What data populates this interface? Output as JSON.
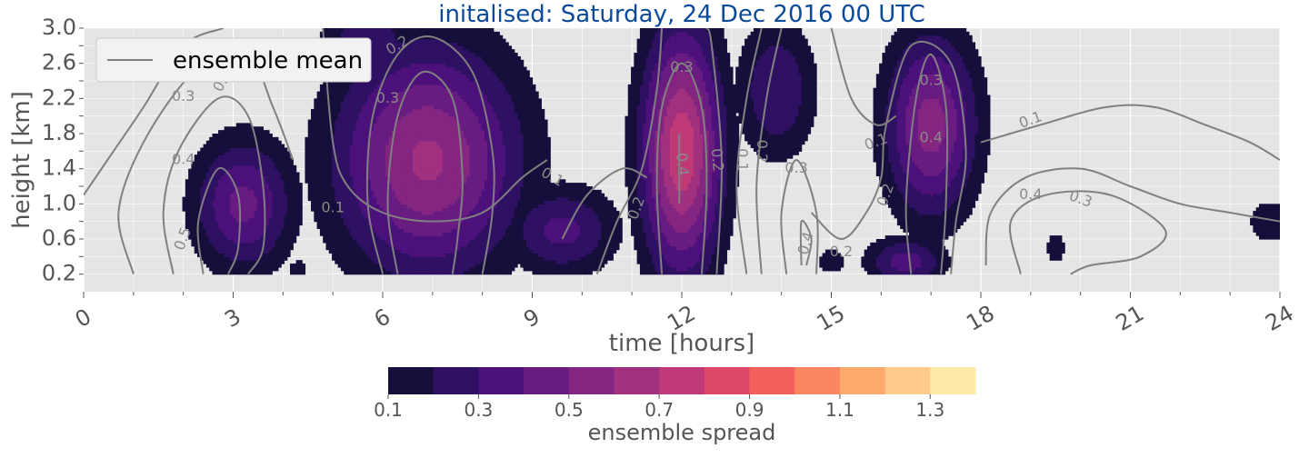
{
  "chart_data": {
    "type": "heatmap",
    "subtype": "filled-contour-with-line-contours",
    "title": "initalised: Saturday, 24 Dec 2016 00 UTC",
    "title_color": "#0b4a9a",
    "xlabel": "time [hours]",
    "ylabel": "height [km]",
    "xlim": [
      0,
      24
    ],
    "ylim": [
      0.0,
      3.0
    ],
    "x_ticks": [
      0,
      3,
      6,
      9,
      12,
      15,
      18,
      21,
      24
    ],
    "x_tick_labels": [
      "0",
      "3",
      "6",
      "9",
      "12",
      "15",
      "18",
      "21",
      "24"
    ],
    "y_ticks": [
      0.2,
      0.6,
      1.0,
      1.4,
      1.8,
      2.2,
      2.6,
      3.0
    ],
    "y_tick_labels": [
      "0.2",
      "0.6",
      "1.0",
      "1.4",
      "1.8",
      "2.2",
      "2.6",
      "3.0"
    ],
    "grid": true,
    "legend": {
      "position": "top-left",
      "entries": [
        {
          "label": "ensemble mean",
          "color": "#808080"
        }
      ]
    },
    "colorbar": {
      "label": "ensemble spread",
      "colormap": "magma",
      "levels": [
        0.1,
        0.2,
        0.3,
        0.4,
        0.5,
        0.6,
        0.7,
        0.8,
        0.9,
        1.0,
        1.1,
        1.2,
        1.3,
        1.4
      ],
      "tick_values": [
        0.1,
        0.3,
        0.5,
        0.7,
        0.9,
        1.1,
        1.3
      ],
      "tick_labels": [
        "0.1",
        "0.3",
        "0.5",
        "0.7",
        "0.9",
        "1.1",
        "1.3"
      ],
      "colors": [
        "#160f3b",
        "#2f1163",
        "#4c117a",
        "#681c81",
        "#842681",
        "#a1307e",
        "#bf3a77",
        "#dc4869",
        "#f1605d",
        "#fb8761",
        "#fda96c",
        "#fecb8b",
        "#fdeaab"
      ]
    },
    "spread_blobs": [
      {
        "cx": 3.2,
        "cy": 1.0,
        "rx": 1.25,
        "ry": 0.95,
        "peak": 0.43
      },
      {
        "cx": 4.3,
        "cy": 0.25,
        "rx": 0.3,
        "ry": 0.2,
        "peak": 0.15
      },
      {
        "cx": 6.9,
        "cy": 1.5,
        "rx": 2.3,
        "ry": 1.65,
        "peak": 0.62
      },
      {
        "cx": 5.7,
        "cy": 2.8,
        "rx": 1.2,
        "ry": 0.55,
        "peak": 0.3
      },
      {
        "cx": 9.6,
        "cy": 0.7,
        "rx": 1.4,
        "ry": 0.65,
        "peak": 0.33
      },
      {
        "cx": 12.0,
        "cy": 1.6,
        "rx": 1.0,
        "ry": 1.75,
        "peak": 0.78
      },
      {
        "cx": 13.9,
        "cy": 2.3,
        "rx": 1.0,
        "ry": 1.0,
        "peak": 0.3
      },
      {
        "cx": 17.0,
        "cy": 1.9,
        "rx": 1.15,
        "ry": 1.3,
        "peak": 0.55
      },
      {
        "cx": 16.5,
        "cy": 0.35,
        "rx": 1.0,
        "ry": 0.35,
        "peak": 0.35
      },
      {
        "cx": 15.0,
        "cy": 0.35,
        "rx": 0.5,
        "ry": 0.25,
        "peak": 0.15
      },
      {
        "cx": 19.5,
        "cy": 0.5,
        "rx": 0.35,
        "ry": 0.3,
        "peak": 0.15
      },
      {
        "cx": 23.8,
        "cy": 0.8,
        "rx": 0.7,
        "ry": 0.4,
        "peak": 0.16
      }
    ],
    "mean_contours": [
      {
        "level": "0.1",
        "points": [
          [
            0.0,
            1.1
          ],
          [
            0.6,
            1.6
          ],
          [
            1.2,
            2.1
          ],
          [
            2.0,
            2.8
          ],
          [
            2.8,
            3.0
          ]
        ]
      },
      {
        "level": "0.3",
        "points": [
          [
            1.0,
            0.2
          ],
          [
            0.7,
            0.9
          ],
          [
            1.2,
            1.7
          ],
          [
            2.2,
            2.5
          ],
          [
            3.2,
            2.8
          ],
          [
            3.8,
            2.1
          ],
          [
            4.2,
            1.5
          ]
        ]
      },
      {
        "level": "0.4",
        "points": [
          [
            1.8,
            0.2
          ],
          [
            1.6,
            0.9
          ],
          [
            1.9,
            1.6
          ],
          [
            2.7,
            2.2
          ],
          [
            3.3,
            2.0
          ],
          [
            3.6,
            1.2
          ],
          [
            3.6,
            0.5
          ],
          [
            3.3,
            0.2
          ]
        ]
      },
      {
        "level": "0.5",
        "points": [
          [
            2.4,
            0.2
          ],
          [
            2.3,
            0.8
          ],
          [
            2.7,
            1.4
          ],
          [
            3.1,
            1.1
          ],
          [
            3.1,
            0.5
          ],
          [
            2.9,
            0.2
          ]
        ]
      },
      {
        "level": "0.1",
        "points": [
          [
            4.8,
            3.0
          ],
          [
            5.0,
            1.7
          ],
          [
            5.3,
            1.2
          ],
          [
            6.0,
            0.9
          ],
          [
            7.0,
            0.8
          ],
          [
            8.0,
            0.9
          ],
          [
            8.8,
            1.3
          ],
          [
            9.3,
            1.5
          ]
        ]
      },
      {
        "level": "0.2",
        "points": [
          [
            6.0,
            0.2
          ],
          [
            5.7,
            1.0
          ],
          [
            5.8,
            2.0
          ],
          [
            6.3,
            2.7
          ],
          [
            7.0,
            2.9
          ],
          [
            7.8,
            2.5
          ],
          [
            8.2,
            1.6
          ],
          [
            8.2,
            0.9
          ],
          [
            8.0,
            0.2
          ]
        ]
      },
      {
        "level": "0.3",
        "points": [
          [
            6.3,
            0.2
          ],
          [
            6.1,
            1.0
          ],
          [
            6.3,
            2.0
          ],
          [
            6.8,
            2.5
          ],
          [
            7.4,
            2.2
          ],
          [
            7.6,
            1.3
          ],
          [
            7.5,
            0.6
          ],
          [
            7.4,
            0.2
          ]
        ]
      },
      {
        "level": "0.1",
        "points": [
          [
            9.6,
            0.6
          ],
          [
            10.1,
            1.1
          ],
          [
            10.8,
            1.4
          ],
          [
            11.3,
            1.3
          ]
        ]
      },
      {
        "level": "0.2",
        "points": [
          [
            10.3,
            0.2
          ],
          [
            10.7,
            0.8
          ],
          [
            11.2,
            1.4
          ],
          [
            11.5,
            2.3
          ],
          [
            11.6,
            3.0
          ]
        ]
      },
      {
        "level": "0.3",
        "points": [
          [
            11.6,
            0.2
          ],
          [
            11.5,
            1.2
          ],
          [
            11.6,
            2.1
          ],
          [
            12.0,
            2.6
          ],
          [
            12.4,
            2.1
          ],
          [
            12.5,
            1.2
          ],
          [
            12.4,
            0.2
          ]
        ]
      },
      {
        "level": "0.4",
        "points": [
          [
            11.95,
            1.0
          ],
          [
            11.95,
            1.8
          ]
        ]
      },
      {
        "level": "0.2",
        "points": [
          [
            12.7,
            0.2
          ],
          [
            12.8,
            1.5
          ],
          [
            12.6,
            2.8
          ],
          [
            12.5,
            3.0
          ]
        ]
      },
      {
        "level": "0.1",
        "points": [
          [
            13.3,
            0.2
          ],
          [
            13.1,
            1.2
          ],
          [
            13.3,
            2.2
          ],
          [
            13.6,
            3.0
          ]
        ]
      },
      {
        "level": "0.2",
        "points": [
          [
            13.6,
            0.2
          ],
          [
            13.5,
            1.2
          ],
          [
            13.7,
            2.2
          ],
          [
            14.0,
            3.0
          ]
        ]
      },
      {
        "level": "0.3",
        "points": [
          [
            14.1,
            0.2
          ],
          [
            14.0,
            0.9
          ],
          [
            14.3,
            1.5
          ],
          [
            14.7,
            0.9
          ],
          [
            14.7,
            0.2
          ]
        ]
      },
      {
        "level": "0.4",
        "points": [
          [
            14.4,
            0.3
          ],
          [
            14.4,
            0.8
          ],
          [
            14.6,
            0.6
          ],
          [
            14.5,
            0.3
          ]
        ]
      },
      {
        "level": "0.1",
        "points": [
          [
            15.0,
            3.0
          ],
          [
            15.4,
            2.2
          ],
          [
            15.9,
            1.9
          ],
          [
            16.3,
            2.0
          ]
        ]
      },
      {
        "level": "0.2",
        "points": [
          [
            14.6,
            0.9
          ],
          [
            15.2,
            0.6
          ],
          [
            15.7,
            0.9
          ],
          [
            16.0,
            1.3
          ],
          [
            16.1,
            1.9
          ],
          [
            16.6,
            2.8
          ],
          [
            17.4,
            2.6
          ],
          [
            17.7,
            1.6
          ],
          [
            17.5,
            0.8
          ],
          [
            17.4,
            0.2
          ]
        ]
      },
      {
        "level": "0.3",
        "points": [
          [
            16.6,
            0.2
          ],
          [
            16.5,
            1.0
          ],
          [
            16.7,
            2.2
          ],
          [
            17.0,
            2.7
          ],
          [
            17.3,
            2.1
          ],
          [
            17.3,
            1.0
          ],
          [
            17.2,
            0.2
          ]
        ]
      },
      {
        "level": "0.1",
        "points": [
          [
            18.0,
            1.7
          ],
          [
            19.2,
            1.9
          ],
          [
            20.5,
            2.1
          ],
          [
            21.5,
            2.1
          ],
          [
            22.5,
            1.9
          ],
          [
            23.4,
            1.7
          ],
          [
            24.0,
            1.5
          ]
        ]
      },
      {
        "level": "0.3",
        "points": [
          [
            18.1,
            0.3
          ],
          [
            18.2,
            0.9
          ],
          [
            18.9,
            1.3
          ],
          [
            20.0,
            1.4
          ],
          [
            21.0,
            1.2
          ],
          [
            22.0,
            1.0
          ],
          [
            23.0,
            0.9
          ],
          [
            24.0,
            0.8
          ]
        ]
      },
      {
        "level": "0.4",
        "points": [
          [
            18.8,
            0.2
          ],
          [
            18.6,
            0.8
          ],
          [
            19.3,
            1.1
          ],
          [
            20.6,
            1.1
          ],
          [
            21.7,
            0.7
          ],
          [
            21.2,
            0.4
          ],
          [
            20.2,
            0.3
          ],
          [
            19.8,
            0.2
          ]
        ]
      }
    ],
    "contour_labels": [
      {
        "text": "0.1",
        "x": 1.0,
        "y": 2.55,
        "rot": -60
      },
      {
        "text": "0.3",
        "x": 2.0,
        "y": 2.22,
        "rot": 0
      },
      {
        "text": "0.4",
        "x": 2.0,
        "y": 1.5,
        "rot": 0
      },
      {
        "text": "0.5",
        "x": 2.0,
        "y": 0.6,
        "rot": -70
      },
      {
        "text": "0.3",
        "x": 2.8,
        "y": 2.4,
        "rot": -60
      },
      {
        "text": "0.2",
        "x": 6.3,
        "y": 2.8,
        "rot": -30
      },
      {
        "text": "0.3",
        "x": 6.1,
        "y": 2.2,
        "rot": 0
      },
      {
        "text": "0.1",
        "x": 5.0,
        "y": 0.95,
        "rot": 0
      },
      {
        "text": "0.1",
        "x": 9.4,
        "y": 1.3,
        "rot": 30
      },
      {
        "text": "0.2",
        "x": 11.1,
        "y": 0.95,
        "rot": -70
      },
      {
        "text": "0.3",
        "x": 12.0,
        "y": 2.55,
        "rot": 0
      },
      {
        "text": "0.4",
        "x": 12.0,
        "y": 1.45,
        "rot": 85
      },
      {
        "text": "0.2",
        "x": 12.7,
        "y": 1.5,
        "rot": 85
      },
      {
        "text": "0.1",
        "x": 13.2,
        "y": 1.5,
        "rot": 90
      },
      {
        "text": "0.2",
        "x": 13.6,
        "y": 1.6,
        "rot": 90
      },
      {
        "text": "0.3",
        "x": 14.3,
        "y": 1.4,
        "rot": 0
      },
      {
        "text": "0.4",
        "x": 14.5,
        "y": 0.55,
        "rot": -75
      },
      {
        "text": "0.2",
        "x": 15.2,
        "y": 0.45,
        "rot": 0
      },
      {
        "text": "0.1",
        "x": 15.9,
        "y": 1.7,
        "rot": -20
      },
      {
        "text": "0.2",
        "x": 16.1,
        "y": 1.1,
        "rot": -70
      },
      {
        "text": "0.3",
        "x": 17.0,
        "y": 2.4,
        "rot": 0
      },
      {
        "text": "0.4",
        "x": 17.0,
        "y": 1.75,
        "rot": 0
      },
      {
        "text": "0.1",
        "x": 19.0,
        "y": 1.95,
        "rot": -20
      },
      {
        "text": "0.4",
        "x": 19.0,
        "y": 1.1,
        "rot": 0
      },
      {
        "text": "0.3",
        "x": 20.0,
        "y": 1.05,
        "rot": 20
      }
    ]
  }
}
